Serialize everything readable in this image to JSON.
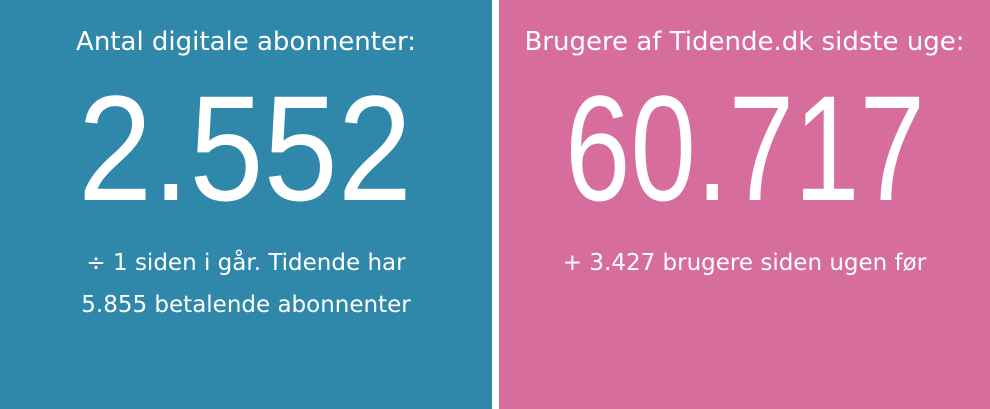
{
  "colors": {
    "left_panel": "#2f88aa",
    "right_panel": "#d76d9d",
    "text": "#ffffff"
  },
  "left": {
    "title": "Antal digitale abonnenter:",
    "value": "2.552",
    "sub_line1": "÷ 1 siden i går. Tidende har",
    "sub_line2": "5.855 betalende abonnenter"
  },
  "right": {
    "title": "Brugere af Tidende.dk sidste uge:",
    "value": "60.717",
    "sub_line1": "+ 3.427 brugere siden ugen før"
  }
}
